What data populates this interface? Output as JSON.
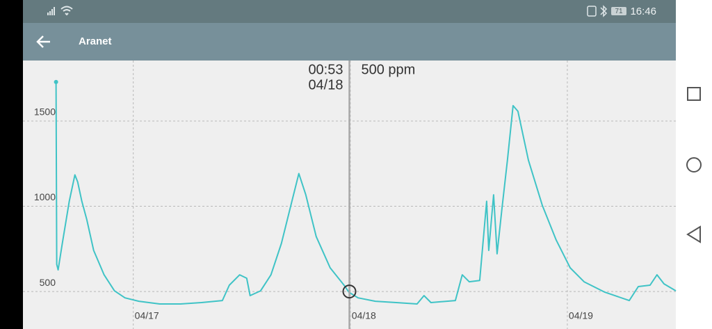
{
  "status_bar": {
    "battery": "71",
    "time": "16:46"
  },
  "app_bar": {
    "title": "Aranet"
  },
  "chart_data": {
    "type": "line",
    "x": [
      -8.54,
      -8.46,
      -8.31,
      -7.85,
      -7.08,
      -6.46,
      -6.15,
      -5.69,
      -5.15,
      -4.38,
      -3.23,
      -2.08,
      -0.92,
      0.62,
      2.92,
      5.23,
      7.54,
      9.85,
      10.62,
      11.77,
      12.54,
      12.92,
      14.08,
      15.23,
      16.38,
      17.54,
      18.31,
      19.08,
      20.23,
      21.77,
      23.31,
      23.85,
      24.85,
      26.77,
      29.08,
      31.38,
      32.15,
      32.92,
      35.62,
      36.38,
      37.15,
      38.31,
      39.08,
      39.31,
      39.85,
      40.23,
      40.77,
      41.38,
      42.0,
      42.54,
      43.69,
      45.23,
      46.77,
      48.31,
      49.85,
      52.15,
      54.85,
      55.85,
      57.15,
      57.92,
      58.69,
      60.0
    ],
    "series": [
      {
        "color": "#3fc3c6",
        "values": [
          1729,
          659,
          627,
          782,
          1029,
          1184,
          1143,
          1029,
          924,
          741,
          598,
          504,
          463,
          443,
          427,
          427,
          435,
          447,
          537,
          598,
          578,
          476,
          504,
          598,
          782,
          1029,
          1192,
          1067,
          822,
          639,
          537,
          496,
          463,
          443,
          435,
          427,
          476,
          435,
          447,
          598,
          557,
          565,
          1029,
          741,
          1067,
          721,
          986,
          1271,
          1590,
          1557,
          1271,
          1006,
          802,
          639,
          557,
          496,
          447,
          529,
          537,
          598,
          545,
          504
        ]
      }
    ],
    "xlim": [
      -12.2,
      60
    ],
    "xticks": [
      {
        "value": 0,
        "label": "04/17"
      },
      {
        "value": 24,
        "label": "04/18"
      },
      {
        "value": 48,
        "label": "04/19"
      }
    ],
    "ylim": [
      280,
      1855
    ],
    "yticks": [
      500,
      1000,
      1500
    ],
    "grid": true,
    "cursor": {
      "x": 23.9,
      "y": 500,
      "time_label": "00:53",
      "date_label": "04/18",
      "value_label": "500 ppm"
    }
  }
}
